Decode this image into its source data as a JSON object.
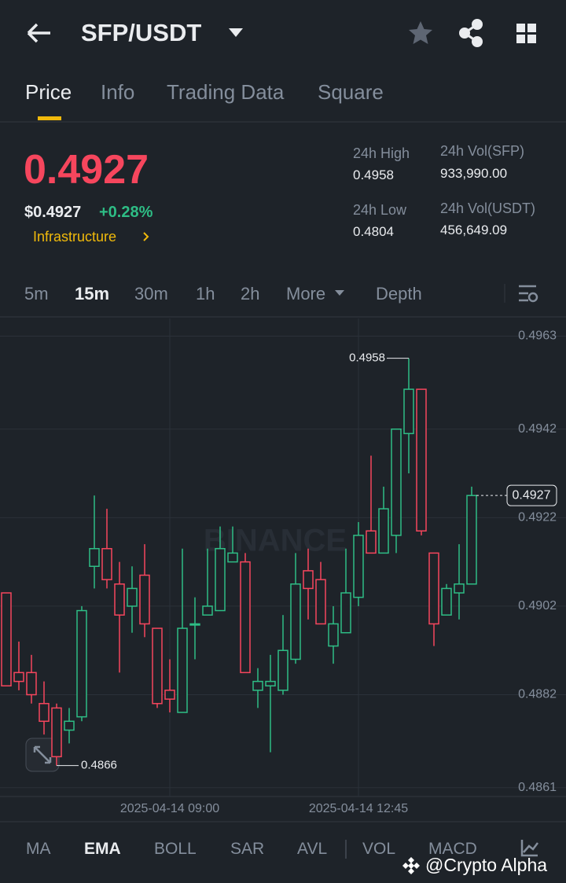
{
  "header": {
    "pair": "SFP/USDT"
  },
  "tabs": [
    "Price",
    "Info",
    "Trading Data",
    "Square"
  ],
  "price": {
    "last": "0.4927",
    "usd": "$0.4927",
    "change": "+0.28%",
    "tag": "Infrastructure"
  },
  "stats": [
    {
      "label": "24h High",
      "value": "0.4958"
    },
    {
      "label": "24h Vol(SFP)",
      "value": "933,990.00"
    },
    {
      "label": "24h Low",
      "value": "0.4804"
    },
    {
      "label": "24h Vol(USDT)",
      "value": "456,649.09"
    }
  ],
  "intervals": [
    "5m",
    "15m",
    "30m",
    "1h",
    "2h",
    "More",
    "Depth"
  ],
  "indicators": [
    "MA",
    "EMA",
    "BOLL",
    "SAR",
    "AVL",
    "VOL",
    "MACD"
  ],
  "watermark": "@Crypto Alpha",
  "chart_data": {
    "type": "candlestick",
    "watermark": "BINANCE",
    "categories": [
      null,
      null,
      null,
      null,
      null,
      null,
      null,
      null,
      null,
      null,
      null,
      null,
      null,
      "2025-04-14 09:00",
      null,
      null,
      null,
      null,
      null,
      null,
      null,
      null,
      null,
      null,
      null,
      null,
      null,
      null,
      "2025-04-14 12:45",
      null,
      null,
      null,
      null,
      null,
      null,
      null,
      null,
      null
    ],
    "open": [
      0.4905,
      0.4887,
      0.4887,
      0.488,
      0.4879,
      0.4874,
      0.4877,
      0.4911,
      0.4915,
      0.4907,
      0.4902,
      0.4909,
      0.4897,
      0.4883,
      0.4878,
      0.4898,
      0.49,
      0.4901,
      0.4912,
      0.4912,
      0.4883,
      0.4884,
      0.4883,
      0.489,
      0.491,
      0.4908,
      0.4893,
      0.4896,
      0.4904,
      0.4919,
      0.4914,
      0.4918,
      0.4941,
      0.4951,
      0.4914,
      0.49,
      0.4905,
      0.4907
    ],
    "high": [
      0.4905,
      0.4894,
      0.4891,
      0.4885,
      0.488,
      0.4879,
      0.4902,
      0.4927,
      0.4924,
      0.4912,
      0.4911,
      0.4916,
      0.4897,
      0.489,
      0.4915,
      0.4904,
      0.4915,
      0.492,
      0.492,
      0.4914,
      0.4888,
      0.4891,
      0.49,
      0.4914,
      0.4915,
      0.4912,
      0.4902,
      0.4915,
      0.4921,
      0.4936,
      0.4929,
      0.4942,
      0.4958,
      0.4951,
      0.4914,
      0.4907,
      0.4916,
      0.4929
    ],
    "low": [
      0.4884,
      0.4883,
      0.488,
      0.4873,
      0.4866,
      0.4871,
      0.4876,
      0.4906,
      0.4906,
      0.4887,
      0.4896,
      0.4895,
      0.4879,
      0.4878,
      0.4878,
      0.489,
      0.49,
      0.4901,
      0.4912,
      0.4887,
      0.4879,
      0.4869,
      0.4882,
      0.4889,
      0.4899,
      0.4898,
      0.4889,
      0.4896,
      0.4902,
      0.4914,
      0.4914,
      0.4914,
      0.4932,
      0.4918,
      0.4893,
      0.49,
      0.4899,
      0.4907
    ],
    "close": [
      0.4884,
      0.4885,
      0.4882,
      0.4876,
      0.4868,
      0.4876,
      0.4901,
      0.4915,
      0.4908,
      0.49,
      0.4906,
      0.4898,
      0.488,
      0.4881,
      0.4897,
      0.4898,
      0.4902,
      0.4915,
      0.4914,
      0.4887,
      0.4885,
      0.4885,
      0.4892,
      0.4907,
      0.4906,
      0.4898,
      0.4898,
      0.4905,
      0.4918,
      0.4914,
      0.4924,
      0.4942,
      0.4951,
      0.4919,
      0.4898,
      0.4906,
      0.4907,
      0.4927
    ],
    "up_color": "#2ebd85",
    "down_color": "#f6465d",
    "max_marker": 0.4958,
    "min_marker": 0.4866,
    "last_price": 0.4927,
    "ylim": [
      0.4859,
      0.4967
    ],
    "yticks": [
      0.4963,
      0.4942,
      0.4922,
      0.4902,
      0.4882,
      0.4861
    ],
    "grid": true
  }
}
